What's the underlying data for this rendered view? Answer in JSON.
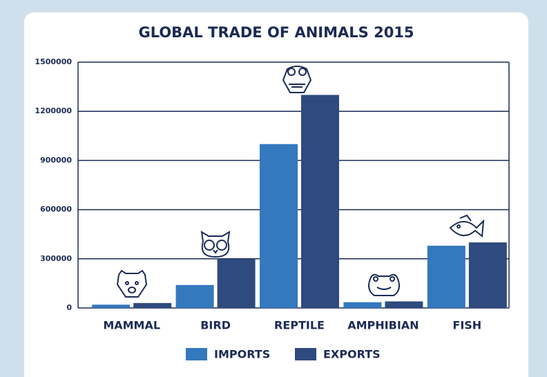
{
  "chart_data": {
    "type": "bar",
    "title": "GLOBAL TRADE OF ANIMALS 2015",
    "categories": [
      "MAMMAL",
      "BIRD",
      "REPTILE",
      "AMPHIBIAN",
      "FISH"
    ],
    "series": [
      {
        "name": "IMPORTS",
        "color": "#3478be",
        "values": [
          20000,
          140000,
          1000000,
          35000,
          380000
        ]
      },
      {
        "name": "EXPORTS",
        "color": "#2e4a7e",
        "values": [
          30000,
          300000,
          1300000,
          40000,
          400000
        ]
      }
    ],
    "ylim": [
      0,
      1500000
    ],
    "yticks": [
      0,
      300000,
      600000,
      900000,
      1200000,
      1500000
    ],
    "grid": true
  }
}
